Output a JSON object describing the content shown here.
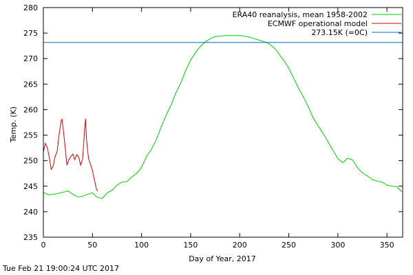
{
  "chart_data": {
    "type": "line",
    "xlabel": "Day of Year, 2017",
    "ylabel": "Temp. (K)",
    "xlim": [
      0,
      366
    ],
    "ylim": [
      235,
      280
    ],
    "xticks": [
      0,
      50,
      100,
      150,
      200,
      250,
      300,
      350
    ],
    "yticks": [
      235,
      240,
      245,
      250,
      255,
      260,
      265,
      270,
      275,
      280
    ],
    "grid": false,
    "legend_position": "top-right",
    "series": [
      {
        "name": "ERA40 reanalysis, mean 1958-2002",
        "color": "#00cc00",
        "x": [
          0,
          5,
          10,
          15,
          20,
          25,
          30,
          35,
          40,
          45,
          50,
          55,
          60,
          65,
          70,
          75,
          80,
          85,
          90,
          95,
          100,
          105,
          110,
          115,
          120,
          125,
          130,
          135,
          140,
          145,
          150,
          155,
          160,
          165,
          170,
          175,
          180,
          185,
          190,
          195,
          200,
          205,
          210,
          215,
          220,
          225,
          230,
          235,
          240,
          245,
          250,
          255,
          260,
          265,
          270,
          275,
          280,
          285,
          290,
          295,
          300,
          305,
          310,
          315,
          320,
          325,
          330,
          335,
          340,
          345,
          350,
          355,
          360,
          365
        ],
        "y": [
          243.8,
          243.3,
          243.4,
          243.6,
          243.8,
          244.1,
          243.4,
          242.9,
          243.0,
          243.4,
          243.7,
          242.8,
          242.6,
          243.7,
          244.2,
          245.2,
          245.8,
          245.9,
          246.8,
          247.5,
          248.7,
          250.8,
          252.2,
          254.1,
          256.6,
          258.9,
          260.9,
          263.3,
          265.2,
          267.7,
          269.7,
          271.2,
          272.4,
          273.3,
          273.9,
          274.3,
          274.4,
          274.5,
          274.5,
          274.5,
          274.5,
          274.4,
          274.2,
          273.9,
          273.6,
          273.3,
          272.9,
          272.1,
          270.9,
          269.6,
          268.1,
          266.1,
          264.2,
          262.4,
          260.5,
          258.3,
          256.8,
          255.3,
          253.7,
          252.0,
          250.4,
          249.6,
          250.5,
          250.1,
          248.6,
          247.6,
          247.0,
          246.3,
          246.0,
          245.8,
          245.2,
          245.0,
          244.9,
          243.9
        ]
      },
      {
        "name": "ECMWF operational model",
        "color": "#cc0000",
        "x": [
          0,
          2,
          4,
          6,
          8,
          10,
          12,
          14,
          16,
          18,
          19,
          20,
          22,
          24,
          26,
          28,
          30,
          32,
          34,
          36,
          38,
          40,
          42,
          43,
          44,
          46,
          48,
          50,
          52,
          54,
          55
        ],
        "y": [
          251.7,
          253.4,
          252.6,
          250.6,
          248.3,
          249.0,
          250.8,
          251.8,
          255.0,
          257.8,
          258.1,
          256.6,
          253.0,
          249.1,
          250.2,
          250.8,
          251.3,
          250.2,
          251.2,
          250.7,
          249.1,
          250.3,
          256.0,
          258.2,
          254.0,
          250.4,
          249.3,
          248.1,
          246.2,
          244.5,
          244.0
        ]
      },
      {
        "name": "273.15K (=0C)",
        "color": "#0066cc",
        "x": [
          0,
          366
        ],
        "y": [
          273.15,
          273.15
        ]
      }
    ],
    "footer_timestamp": "Tue Feb 21 19:00:24 UTC 2017"
  }
}
